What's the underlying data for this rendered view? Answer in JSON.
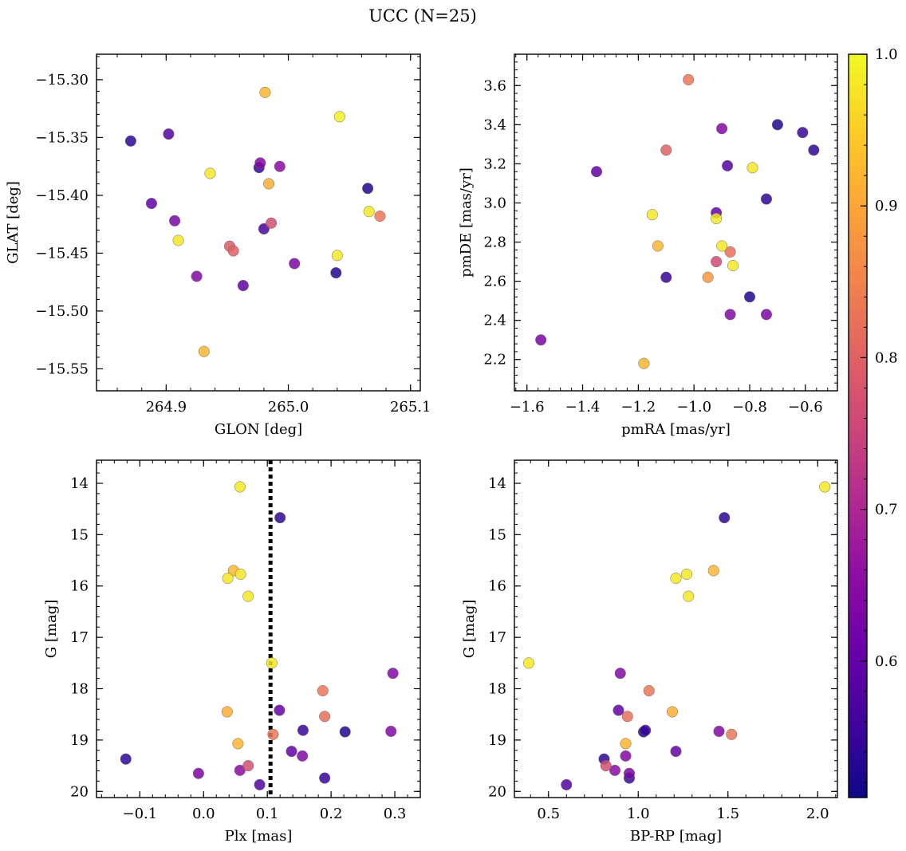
{
  "figure": {
    "title": "UCC (N=25)"
  },
  "colorbar": {
    "cmap": "plasma",
    "range": [
      0.51,
      1.0
    ],
    "ticks": [
      0.6,
      0.7,
      0.8,
      0.9,
      1.0
    ],
    "tick_labels": [
      "0.6",
      "0.7",
      "0.8",
      "0.9",
      "1.0"
    ]
  },
  "chart_data": [
    {
      "type": "scatter",
      "id": "glon-glat",
      "xlabel": "GLON [deg]",
      "ylabel": "GLAT [deg]",
      "xlim": [
        264.843,
        265.108
      ],
      "ylim": [
        -15.569,
        -15.278
      ],
      "xticks": [
        264.9,
        265.0,
        265.1
      ],
      "xtick_labels": [
        "264.9",
        "265.0",
        "265.1"
      ],
      "xminor": 0.02,
      "yticks": [
        -15.55,
        -15.5,
        -15.45,
        -15.4,
        -15.35,
        -15.3
      ],
      "ytick_labels": [
        "−15.55",
        "−15.50",
        "−15.45",
        "−15.40",
        "−15.35",
        "−15.30"
      ],
      "yminor": 0.01,
      "x": [
        264.981,
        265.042,
        264.871,
        264.902,
        264.977,
        264.976,
        264.993,
        264.936,
        264.984,
        265.065,
        264.888,
        265.066,
        265.075,
        264.907,
        264.986,
        264.98,
        264.91,
        264.952,
        264.955,
        265.04,
        265.005,
        265.039,
        264.925,
        264.963,
        264.931
      ],
      "y": [
        -15.311,
        -15.332,
        -15.353,
        -15.347,
        -15.372,
        -15.376,
        -15.375,
        -15.381,
        -15.39,
        -15.394,
        -15.407,
        -15.414,
        -15.418,
        -15.422,
        -15.424,
        -15.429,
        -15.439,
        -15.444,
        -15.448,
        -15.452,
        -15.459,
        -15.467,
        -15.47,
        -15.478,
        -15.535
      ],
      "c": [
        0.92,
        0.99,
        0.54,
        0.58,
        0.64,
        0.55,
        0.65,
        0.98,
        0.91,
        0.53,
        0.6,
        0.98,
        0.83,
        0.63,
        0.77,
        0.57,
        0.98,
        0.79,
        0.8,
        0.98,
        0.63,
        0.53,
        0.64,
        0.6,
        0.92
      ]
    },
    {
      "type": "scatter",
      "id": "pm",
      "xlabel": "pmRA [mas/yr]",
      "ylabel": "pmDE [mas/yr]",
      "xlim": [
        -1.645,
        -0.485
      ],
      "ylim": [
        2.04,
        3.76
      ],
      "xticks": [
        -1.6,
        -1.4,
        -1.2,
        -1.0,
        -0.8,
        -0.6
      ],
      "xtick_labels": [
        "−1.6",
        "−1.4",
        "−1.2",
        "−1.0",
        "−0.8",
        "−0.6"
      ],
      "xminor": 0.04,
      "yticks": [
        2.2,
        2.4,
        2.6,
        2.8,
        3.0,
        3.2,
        3.4,
        3.6
      ],
      "ytick_labels": [
        "2.2",
        "2.4",
        "2.6",
        "2.8",
        "3.0",
        "3.2",
        "3.4",
        "3.6"
      ],
      "yminor": 0.04,
      "x": [
        -1.02,
        -0.7,
        -0.9,
        -0.61,
        -0.57,
        -1.1,
        -0.88,
        -0.79,
        -1.35,
        -0.74,
        -0.92,
        -1.15,
        -0.92,
        -0.9,
        -1.13,
        -0.87,
        -0.92,
        -0.86,
        -1.1,
        -0.95,
        -0.8,
        -0.87,
        -0.74,
        -1.55,
        -1.18
      ],
      "y": [
        3.63,
        3.4,
        3.38,
        3.36,
        3.27,
        3.27,
        3.19,
        3.18,
        3.16,
        3.02,
        2.95,
        2.94,
        2.92,
        2.78,
        2.78,
        2.75,
        2.7,
        2.68,
        2.62,
        2.62,
        2.52,
        2.43,
        2.43,
        2.3,
        2.18
      ],
      "c": [
        0.83,
        0.53,
        0.64,
        0.55,
        0.54,
        0.8,
        0.58,
        0.98,
        0.6,
        0.54,
        0.6,
        0.98,
        0.98,
        0.98,
        0.92,
        0.82,
        0.76,
        0.98,
        0.55,
        0.88,
        0.53,
        0.64,
        0.63,
        0.63,
        0.92
      ]
    },
    {
      "type": "scatter",
      "id": "plx-g",
      "xlabel": "Plx [mas]",
      "ylabel": "G [mag]",
      "xlim": [
        -0.168,
        0.34
      ],
      "ylim": [
        20.12,
        13.55
      ],
      "inverted_y": true,
      "xticks": [
        -0.1,
        0.0,
        0.1,
        0.2,
        0.3
      ],
      "xtick_labels": [
        "−0.1",
        "0.0",
        "0.1",
        "0.2",
        "0.3"
      ],
      "xminor": 0.02,
      "yticks": [
        14,
        15,
        16,
        17,
        18,
        19,
        20
      ],
      "ytick_labels": [
        "14",
        "15",
        "16",
        "17",
        "18",
        "19",
        "20"
      ],
      "yminor": 0.2,
      "vline": {
        "x": 0.105,
        "style": "dotted"
      },
      "x": [
        0.057,
        0.12,
        0.047,
        0.058,
        0.038,
        0.07,
        0.107,
        0.297,
        0.187,
        0.037,
        0.119,
        0.19,
        0.156,
        0.109,
        0.294,
        0.222,
        0.054,
        0.138,
        0.155,
        -0.122,
        0.07,
        -0.008,
        0.057,
        0.19,
        0.088
      ],
      "y": [
        14.07,
        14.67,
        15.7,
        15.77,
        15.85,
        16.2,
        17.5,
        17.7,
        18.04,
        18.45,
        18.42,
        18.54,
        18.81,
        18.89,
        18.83,
        18.84,
        19.07,
        19.22,
        19.31,
        19.37,
        19.5,
        19.65,
        19.59,
        19.74,
        19.87
      ],
      "c": [
        0.98,
        0.54,
        0.92,
        0.98,
        0.98,
        0.98,
        0.98,
        0.64,
        0.83,
        0.91,
        0.6,
        0.82,
        0.55,
        0.83,
        0.64,
        0.53,
        0.92,
        0.6,
        0.64,
        0.54,
        0.77,
        0.63,
        0.65,
        0.55,
        0.58
      ]
    },
    {
      "type": "scatter",
      "id": "bprp-g",
      "xlabel": "BP-RP [mag]",
      "ylabel": "G [mag]",
      "xlim": [
        0.31,
        2.11
      ],
      "ylim": [
        20.12,
        13.55
      ],
      "inverted_y": true,
      "xticks": [
        0.5,
        1.0,
        1.5,
        2.0
      ],
      "xtick_labels": [
        "0.5",
        "1.0",
        "1.5",
        "2.0"
      ],
      "xminor": 0.1,
      "yticks": [
        14,
        15,
        16,
        17,
        18,
        19,
        20
      ],
      "ytick_labels": [
        "14",
        "15",
        "16",
        "17",
        "18",
        "19",
        "20"
      ],
      "yminor": 0.2,
      "x": [
        2.04,
        1.48,
        1.42,
        1.27,
        1.21,
        1.28,
        0.39,
        0.9,
        1.06,
        1.19,
        0.89,
        0.94,
        1.04,
        1.03,
        1.45,
        1.52,
        0.93,
        1.21,
        0.93,
        0.81,
        0.82,
        0.95,
        0.87,
        0.95,
        0.6
      ],
      "y": [
        14.07,
        14.67,
        15.7,
        15.77,
        15.85,
        16.2,
        17.5,
        17.7,
        18.04,
        18.45,
        18.42,
        18.54,
        18.81,
        18.84,
        18.83,
        18.89,
        19.07,
        19.22,
        19.31,
        19.37,
        19.5,
        19.65,
        19.59,
        19.74,
        19.87
      ],
      "c": [
        0.98,
        0.54,
        0.92,
        0.98,
        0.98,
        0.98,
        0.98,
        0.64,
        0.83,
        0.91,
        0.6,
        0.82,
        0.55,
        0.53,
        0.64,
        0.83,
        0.92,
        0.6,
        0.64,
        0.54,
        0.77,
        0.63,
        0.65,
        0.55,
        0.58
      ]
    }
  ]
}
